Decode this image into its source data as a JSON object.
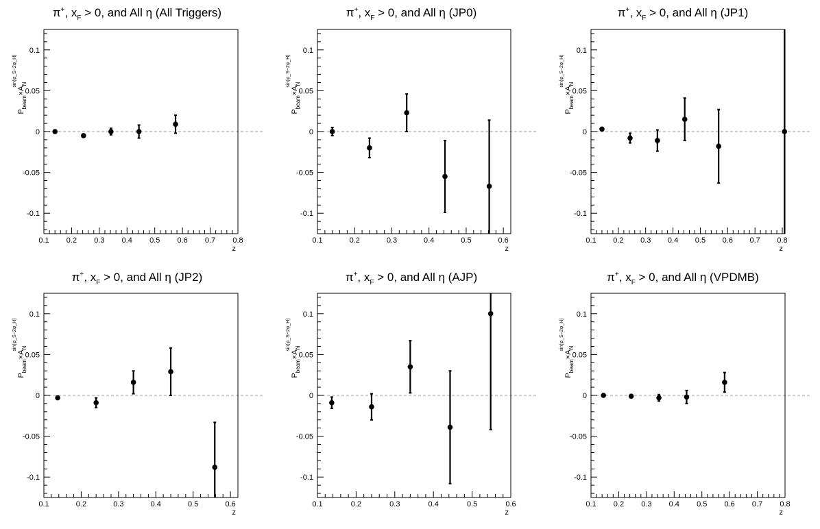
{
  "y_axis_label": {
    "main": "P",
    "sub1": "beam",
    "cross": "×A",
    "sub2": "N",
    "sup": "sin(φ_S−2φ_H)"
  },
  "x_axis_label": "z",
  "colors": {
    "marker": "#000000",
    "zero_line": "#bbbbbb",
    "frame": "#000000"
  },
  "chart_data": [
    {
      "type": "scatter",
      "title": {
        "pi": "π",
        "sup": "+",
        "mid": ", x",
        "sub": "F",
        "rest": " > 0, and All η (All Triggers)"
      },
      "xlabel": "z",
      "ylabel": "P_beam × A_N^{sin(φ_S−2φ_H)}",
      "xlim": [
        0.1,
        0.8
      ],
      "ylim": [
        -0.125,
        0.125
      ],
      "xticks": [
        "0.1",
        "0.2",
        "0.3",
        "0.4",
        "0.5",
        "0.6",
        "0.7",
        "0.8"
      ],
      "yticks": [
        "-0.1",
        "-0.05",
        "0",
        "0.05",
        "0.1"
      ],
      "zero_line": true,
      "points": [
        {
          "x": 0.14,
          "y": 0.0,
          "err": 0.002
        },
        {
          "x": 0.243,
          "y": -0.005,
          "err": 0.002
        },
        {
          "x": 0.342,
          "y": 0.0,
          "err": 0.004
        },
        {
          "x": 0.443,
          "y": 0.0,
          "err": 0.008
        },
        {
          "x": 0.575,
          "y": 0.009,
          "err": 0.011
        }
      ]
    },
    {
      "type": "scatter",
      "title": {
        "pi": "π",
        "sup": "+",
        "mid": ", x",
        "sub": "F",
        "rest": " > 0, and All η (JP0)"
      },
      "xlabel": "z",
      "ylabel": "P_beam × A_N^{sin(φ_S−2φ_H)}",
      "xlim": [
        0.1,
        0.62
      ],
      "ylim": [
        -0.125,
        0.125
      ],
      "xticks": [
        "0.1",
        "0.2",
        "0.3",
        "0.4",
        "0.5",
        "0.6"
      ],
      "yticks": [
        "-0.1",
        "-0.05",
        "0",
        "0.05",
        "0.1"
      ],
      "zero_line": true,
      "points": [
        {
          "x": 0.14,
          "y": 0.0,
          "err": 0.005
        },
        {
          "x": 0.24,
          "y": -0.02,
          "err": 0.012
        },
        {
          "x": 0.34,
          "y": 0.023,
          "err": 0.023
        },
        {
          "x": 0.443,
          "y": -0.055,
          "err": 0.044
        },
        {
          "x": 0.562,
          "y": -0.067,
          "err": 0.081
        }
      ]
    },
    {
      "type": "scatter",
      "title": {
        "pi": "π",
        "sup": "+",
        "mid": ", x",
        "sub": "F",
        "rest": " > 0, and All η (JP1)"
      },
      "xlabel": "z",
      "ylabel": "P_beam × A_N^{sin(φ_S−2φ_H)}",
      "xlim": [
        0.1,
        0.81
      ],
      "ylim": [
        -0.125,
        0.125
      ],
      "xticks": [
        "0.1",
        "0.2",
        "0.3",
        "0.4",
        "0.5",
        "0.6",
        "0.7",
        "0.8"
      ],
      "yticks": [
        "-0.1",
        "-0.05",
        "0",
        "0.05",
        "0.1"
      ],
      "zero_line": true,
      "points": [
        {
          "x": 0.14,
          "y": 0.003,
          "err": 0.002
        },
        {
          "x": 0.243,
          "y": -0.008,
          "err": 0.006
        },
        {
          "x": 0.343,
          "y": -0.011,
          "err": 0.013
        },
        {
          "x": 0.443,
          "y": 0.015,
          "err": 0.026
        },
        {
          "x": 0.567,
          "y": -0.018,
          "err": 0.045
        },
        {
          "x": 0.808,
          "y": 0.0,
          "err": 0.2
        }
      ]
    },
    {
      "type": "scatter",
      "title": {
        "pi": "π",
        "sup": "+",
        "mid": ", x",
        "sub": "F",
        "rest": " > 0, and All η (JP2)"
      },
      "xlabel": "z",
      "ylabel": "P_beam × A_N^{sin(φ_S−2φ_H)}",
      "xlim": [
        0.1,
        0.62
      ],
      "ylim": [
        -0.125,
        0.125
      ],
      "xticks": [
        "0.1",
        "0.2",
        "0.3",
        "0.4",
        "0.5",
        "0.6"
      ],
      "yticks": [
        "-0.1",
        "-0.05",
        "0",
        "0.05",
        "0.1"
      ],
      "zero_line": true,
      "points": [
        {
          "x": 0.137,
          "y": -0.003,
          "err": 0.002
        },
        {
          "x": 0.24,
          "y": -0.009,
          "err": 0.006
        },
        {
          "x": 0.34,
          "y": 0.016,
          "err": 0.014
        },
        {
          "x": 0.44,
          "y": 0.029,
          "err": 0.029
        },
        {
          "x": 0.558,
          "y": -0.088,
          "err": 0.055
        }
      ]
    },
    {
      "type": "scatter",
      "title": {
        "pi": "π",
        "sup": "+",
        "mid": ", x",
        "sub": "F",
        "rest": " > 0, and All η (AJP)"
      },
      "xlabel": "z",
      "ylabel": "P_beam × A_N^{sin(φ_S−2φ_H)}",
      "xlim": [
        0.1,
        0.6
      ],
      "ylim": [
        -0.125,
        0.125
      ],
      "xticks": [
        "0.1",
        "0.2",
        "0.3",
        "0.4",
        "0.5",
        "0.6"
      ],
      "yticks": [
        "-0.1",
        "-0.05",
        "0",
        "0.05",
        "0.1"
      ],
      "zero_line": true,
      "points": [
        {
          "x": 0.137,
          "y": -0.009,
          "err": 0.007
        },
        {
          "x": 0.24,
          "y": -0.014,
          "err": 0.016
        },
        {
          "x": 0.34,
          "y": 0.035,
          "err": 0.032
        },
        {
          "x": 0.443,
          "y": -0.039,
          "err": 0.069
        },
        {
          "x": 0.548,
          "y": 0.1,
          "err": 0.142
        }
      ]
    },
    {
      "type": "scatter",
      "title": {
        "pi": "π",
        "sup": "+",
        "mid": ", x",
        "sub": "F",
        "rest": " > 0, and All η (VPDMB)"
      },
      "xlabel": "z",
      "ylabel": "P_beam × A_N^{sin(φ_S−2φ_H)}",
      "xlim": [
        0.1,
        0.8
      ],
      "ylim": [
        -0.125,
        0.125
      ],
      "xticks": [
        "0.1",
        "0.2",
        "0.3",
        "0.4",
        "0.5",
        "0.6",
        "0.7",
        "0.8"
      ],
      "yticks": [
        "-0.1",
        "-0.05",
        "0",
        "0.05",
        "0.1"
      ],
      "zero_line": true,
      "points": [
        {
          "x": 0.145,
          "y": 0.0,
          "err": 0.002
        },
        {
          "x": 0.245,
          "y": -0.001,
          "err": 0.002
        },
        {
          "x": 0.345,
          "y": -0.003,
          "err": 0.004
        },
        {
          "x": 0.445,
          "y": -0.002,
          "err": 0.008
        },
        {
          "x": 0.582,
          "y": 0.016,
          "err": 0.012
        }
      ]
    }
  ]
}
